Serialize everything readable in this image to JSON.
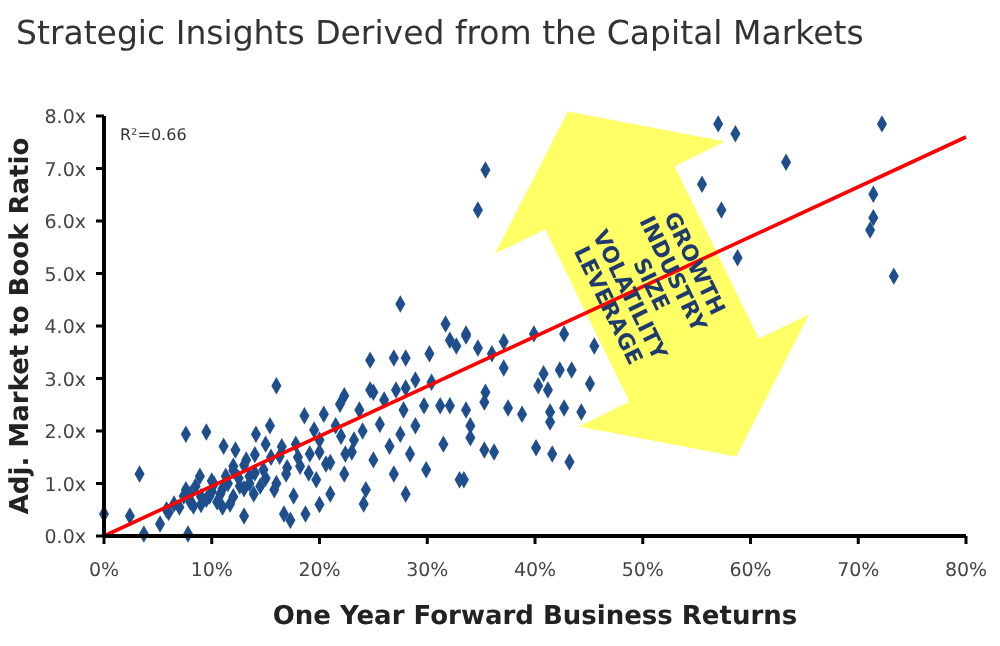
{
  "chart_data": {
    "type": "scatter",
    "title": "Strategic Insights Derived from the Capital Markets",
    "xlabel": "One Year Forward Business Returns",
    "ylabel": "Adj. Market to Book Ratio",
    "annotations": [
      "R²=0.66",
      "GROWTH",
      "INDUSTRY",
      "SIZE",
      "VOLATILITY",
      "LEVERAGE"
    ],
    "xlim": [
      0,
      80
    ],
    "ylim": [
      0,
      8
    ],
    "xticks": [
      {
        "value": 0,
        "label": "0%"
      },
      {
        "value": 10,
        "label": "10%"
      },
      {
        "value": 20,
        "label": "20%"
      },
      {
        "value": 30,
        "label": "30%"
      },
      {
        "value": 40,
        "label": "40%"
      },
      {
        "value": 50,
        "label": "50%"
      },
      {
        "value": 60,
        "label": "60%"
      },
      {
        "value": 70,
        "label": "70%"
      },
      {
        "value": 80,
        "label": "80%"
      }
    ],
    "yticks": [
      {
        "value": 0,
        "label": "0.0x"
      },
      {
        "value": 1,
        "label": "1.0x"
      },
      {
        "value": 2,
        "label": "2.0x"
      },
      {
        "value": 3,
        "label": "3.0x"
      },
      {
        "value": 4,
        "label": "4.0x"
      },
      {
        "value": 5,
        "label": "5.0x"
      },
      {
        "value": 6,
        "label": "6.0x"
      },
      {
        "value": 7,
        "label": "7.0x"
      },
      {
        "value": 8,
        "label": "8.0x"
      }
    ],
    "grid": false,
    "series": [
      {
        "marker": "diamond",
        "color": "#1f4e8c",
        "x": [
          57.0,
          58.6,
          72.2,
          63.3,
          35.4,
          34.7,
          55.5,
          57.3,
          71.4,
          71.4,
          71.1,
          73.3,
          58.8,
          37.1,
          40.8,
          42.3,
          43.4,
          45.1,
          40.3,
          41.2,
          37.5,
          38.8,
          41.4,
          41.4,
          42.7,
          44.3,
          40.1,
          41.6,
          43.2,
          35.3,
          36.2,
          33.4,
          34.0,
          34.0,
          33.6,
          35.4,
          35.3,
          33.6,
          37.1,
          39.9,
          42.7,
          36.0,
          45.5,
          27.5,
          31.7,
          32.1,
          32.7,
          33.6,
          34.7,
          24.7,
          26.9,
          28.0,
          30.2,
          16.0,
          22.3,
          25.0,
          27.1,
          28.0,
          28.9,
          30.4,
          0,
          2.4,
          3.3,
          3.7,
          5.2,
          5.8,
          6.5,
          7.4,
          7.6,
          7.6,
          7.8,
          8.3,
          8.5,
          8.9,
          9.5,
          9.8,
          10.2,
          10.8,
          11.1,
          11.3,
          11.7,
          12.0,
          12.2,
          12.6,
          13.0,
          13.2,
          13.5,
          13.9,
          14.1,
          14.8,
          15.0,
          15.4,
          15.8,
          16.3,
          16.7,
          16.9,
          17.3,
          17.6,
          17.8,
          18.2,
          18.6,
          18.7,
          19.1,
          19.5,
          19.7,
          20.0,
          20.4,
          20.6,
          21.0,
          21.5,
          21.9,
          22.3,
          22.4,
          23.2,
          23.7,
          24.1,
          24.3,
          24.7,
          25.0,
          25.6,
          26.0,
          26.5,
          26.9,
          27.5,
          27.8,
          28.0,
          28.4,
          28.9,
          29.7,
          29.9,
          31.2,
          31.5,
          32.1,
          33.0,
          9,
          9.5,
          10,
          10.5,
          11,
          11.5,
          12,
          12.5,
          13,
          13.5,
          14,
          14.5,
          10,
          11,
          12,
          6,
          7,
          8,
          8,
          9,
          15,
          16,
          17,
          18,
          19,
          20,
          21,
          22,
          23,
          24,
          15.5,
          16.5,
          14,
          13,
          20
        ],
        "values": [
          7.85,
          7.66,
          7.85,
          7.12,
          6.97,
          6.21,
          6.7,
          6.21,
          6.51,
          6.06,
          5.83,
          4.95,
          5.3,
          3.2,
          3.09,
          3.16,
          3.16,
          2.9,
          2.86,
          2.78,
          2.44,
          2.32,
          2.36,
          2.17,
          2.44,
          2.36,
          1.68,
          1.56,
          1.41,
          1.64,
          1.6,
          1.07,
          2.1,
          1.87,
          2.4,
          2.74,
          2.55,
          3.85,
          3.7,
          3.85,
          3.85,
          3.47,
          3.62,
          4.42,
          4.04,
          3.73,
          3.62,
          3.81,
          3.58,
          3.35,
          3.39,
          3.39,
          3.47,
          2.86,
          2.67,
          2.74,
          2.78,
          2.82,
          2.97,
          2.93,
          0.42,
          0.38,
          1.18,
          0.04,
          0.23,
          0.5,
          0.61,
          0.76,
          0.88,
          1.94,
          0.04,
          0.57,
          0.95,
          1.14,
          1.98,
          0.76,
          0.99,
          0.8,
          1.71,
          1.14,
          0.61,
          1.33,
          1.64,
          0.95,
          0.38,
          1.45,
          1.14,
          0.8,
          1.94,
          1.26,
          1.75,
          2.1,
          0.88,
          1.52,
          0.42,
          1.18,
          0.3,
          0.76,
          1.75,
          1.33,
          2.29,
          0.42,
          1.56,
          2.02,
          1.07,
          1.83,
          2.32,
          1.37,
          0.8,
          2.1,
          2.51,
          1.18,
          1.56,
          1.83,
          2.4,
          0.61,
          0.88,
          2.78,
          1.45,
          2.13,
          2.59,
          1.71,
          1.18,
          1.94,
          2.4,
          0.8,
          1.56,
          2.1,
          2.48,
          1.26,
          2.48,
          1.75,
          2.48,
          1.07,
          0.6,
          0.7,
          0.85,
          0.65,
          0.9,
          1.0,
          0.75,
          1.1,
          0.9,
          1.0,
          1.2,
          0.95,
          1.05,
          0.55,
          1.25,
          0.45,
          0.55,
          0.65,
          0.8,
          0.75,
          1.1,
          1.0,
          1.3,
          1.5,
          1.2,
          1.6,
          1.4,
          1.9,
          1.6,
          2.0,
          1.5,
          1.7,
          1.55,
          1.35,
          0.6
        ]
      },
      {
        "type": "line",
        "color": "#ff0000",
        "x": [
          0,
          80
        ],
        "values": [
          0,
          7.6
        ]
      }
    ]
  }
}
